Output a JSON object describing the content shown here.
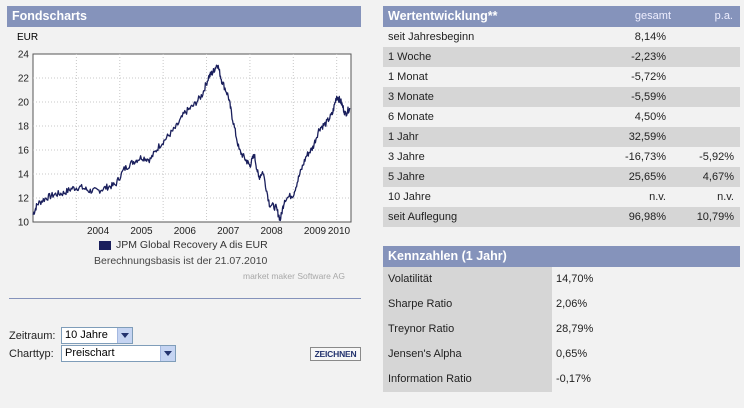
{
  "fondscharts": {
    "title": "Fondscharts",
    "currency": "EUR",
    "legend": "JPM Global Recovery A dis EUR",
    "basis": "Berechnungsbasis ist der 21.07.2010",
    "credit": "market maker Software AG",
    "form": {
      "zeitraum_label": "Zeitraum:",
      "zeitraum_value": "10 Jahre",
      "charttyp_label": "Charttyp:",
      "charttyp_value": "Preischart",
      "draw_button": "ZEICHNEN"
    }
  },
  "chart_data": {
    "type": "line",
    "title": "",
    "xlabel": "",
    "ylabel": "EUR",
    "ylim": [
      10,
      24
    ],
    "yticks": [
      10,
      12,
      14,
      16,
      18,
      20,
      22,
      24
    ],
    "xticks": [
      "2004",
      "2005",
      "2006",
      "2007",
      "2008",
      "2009",
      "2010"
    ],
    "grid": true,
    "series": [
      {
        "name": "JPM Global Recovery A dis EUR",
        "color": "#1a1f5c",
        "x": [
          2003.0,
          2003.1,
          2003.3,
          2003.5,
          2003.7,
          2003.9,
          2004.1,
          2004.3,
          2004.5,
          2004.7,
          2004.9,
          2005.1,
          2005.3,
          2005.5,
          2005.7,
          2005.9,
          2006.1,
          2006.3,
          2006.5,
          2006.7,
          2006.9,
          2007.05,
          2007.15,
          2007.25,
          2007.35,
          2007.5,
          2007.6,
          2007.75,
          2007.9,
          2008.0,
          2008.1,
          2008.2,
          2008.3,
          2008.45,
          2008.6,
          2008.7,
          2008.8,
          2009.0,
          2009.15,
          2009.3,
          2009.45,
          2009.6,
          2009.75,
          2009.9,
          2010.0,
          2010.1,
          2010.2,
          2010.3
        ],
        "y": [
          10.6,
          11.5,
          12.0,
          12.3,
          12.4,
          12.8,
          12.9,
          12.6,
          12.6,
          12.9,
          13.1,
          14.4,
          15.0,
          15.4,
          15.2,
          16.3,
          17.1,
          17.9,
          19.1,
          19.7,
          20.6,
          22.1,
          22.5,
          23.2,
          21.8,
          20.5,
          18.6,
          16.0,
          15.2,
          14.7,
          15.6,
          13.7,
          14.2,
          11.5,
          11.2,
          10.2,
          11.9,
          12.3,
          14.0,
          15.5,
          16.2,
          17.8,
          18.2,
          19.0,
          20.5,
          20.0,
          19.0,
          19.5
        ]
      }
    ]
  },
  "wertentwicklung": {
    "title": "Wertentwicklung**",
    "col1": "gesamt",
    "col2": "p.a.",
    "rows": [
      {
        "label": "seit Jahresbeginn",
        "gesamt": "8,14%",
        "pa": ""
      },
      {
        "label": "1 Woche",
        "gesamt": "-2,23%",
        "pa": ""
      },
      {
        "label": "1 Monat",
        "gesamt": "-5,72%",
        "pa": ""
      },
      {
        "label": "3 Monate",
        "gesamt": "-5,59%",
        "pa": ""
      },
      {
        "label": "6 Monate",
        "gesamt": "4,50%",
        "pa": ""
      },
      {
        "label": "1 Jahr",
        "gesamt": "32,59%",
        "pa": ""
      },
      {
        "label": "3 Jahre",
        "gesamt": "-16,73%",
        "pa": "-5,92%"
      },
      {
        "label": "5 Jahre",
        "gesamt": "25,65%",
        "pa": "4,67%"
      },
      {
        "label": "10 Jahre",
        "gesamt": "n.v.",
        "pa": "n.v."
      },
      {
        "label": "seit Auflegung",
        "gesamt": "96,98%",
        "pa": "10,79%"
      }
    ]
  },
  "kennzahlen": {
    "title": "Kennzahlen (1 Jahr)",
    "rows": [
      {
        "label": "Volatilität",
        "value": "14,70%"
      },
      {
        "label": "Sharpe Ratio",
        "value": "2,06%"
      },
      {
        "label": "Treynor Ratio",
        "value": "28,79%"
      },
      {
        "label": "Jensen's Alpha",
        "value": "0,65%"
      },
      {
        "label": "Information Ratio",
        "value": "-0,17%"
      }
    ]
  }
}
